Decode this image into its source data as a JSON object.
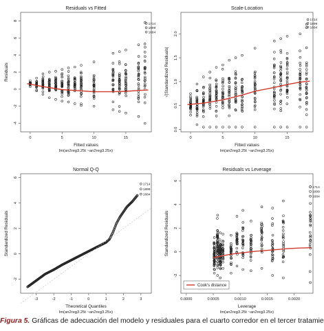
{
  "caption": {
    "label": "Figura 5.",
    "text": "Gráficas de adecuación del modelo y residuales para el cuarto corredor en el tercer tratamiento."
  },
  "colors": {
    "points": "#222222",
    "smooth": "#d0392b",
    "reference": "#bbbbbb",
    "frame": "#666666"
  },
  "chart_data": [
    {
      "type": "scatter",
      "title": "Residuals vs Fitted",
      "xlabel": "Fitted values",
      "model": "lm(an2reg3.25t ~an2reg3.25x)",
      "ylabel": "Residuals",
      "xlim": [
        -1.5,
        19
      ],
      "ylim": [
        -5,
        9
      ],
      "xticks": [
        0,
        5,
        10,
        15
      ],
      "yticks": [
        -4,
        -2,
        0,
        2,
        4,
        6,
        8
      ],
      "fitted_levels": [
        0,
        1,
        2,
        3,
        4,
        5,
        6,
        7,
        8,
        10,
        13,
        14,
        15,
        17,
        18
      ],
      "residual_ranges": [
        [
          0.3,
          1.0
        ],
        [
          -0.2,
          1.3
        ],
        [
          -0.6,
          1.8
        ],
        [
          -1.0,
          2.0
        ],
        [
          -1.2,
          2.1
        ],
        [
          -1.4,
          2.3
        ],
        [
          -1.5,
          2.5
        ],
        [
          -1.7,
          2.6
        ],
        [
          -1.9,
          2.8
        ],
        [
          -2.0,
          3.2
        ],
        [
          -2.4,
          4.2
        ],
        [
          -2.6,
          4.4
        ],
        [
          -2.8,
          4.6
        ],
        [
          -3.2,
          5.2
        ],
        [
          -4.0,
          7.8
        ]
      ],
      "smooth": {
        "x": [
          -0.5,
          2,
          5,
          8,
          10,
          13,
          15,
          17,
          18.5
        ],
        "y": [
          0.65,
          0.3,
          -0.05,
          -0.2,
          -0.3,
          -0.3,
          -0.25,
          -0.15,
          -0.1
        ]
      },
      "labeled_points": [
        {
          "label": "1714",
          "x": 18.2,
          "y": 7.7
        },
        {
          "label": "1899",
          "x": 18.2,
          "y": 7.2
        },
        {
          "label": "1684",
          "x": 18.2,
          "y": 6.7
        }
      ]
    },
    {
      "type": "scatter",
      "title": "Scale-Location",
      "xlabel": "Fitted values",
      "model": "lm(an2reg3.25t ~an2reg3.25x)",
      "ylabel": "√|Standardized Residuals|",
      "xlim": [
        -1.5,
        19
      ],
      "ylim": [
        -0.05,
        2.45
      ],
      "xticks": [
        0,
        5,
        10,
        15
      ],
      "yticks": [
        0.0,
        0.5,
        1.0,
        1.5,
        2.0
      ],
      "fitted_levels": [
        0,
        1,
        2,
        3,
        4,
        5,
        6,
        7,
        8,
        10,
        13,
        14,
        15,
        17,
        18
      ],
      "value_ranges": [
        [
          0.3,
          0.75
        ],
        [
          0.1,
          0.95
        ],
        [
          0.05,
          1.1
        ],
        [
          0.05,
          1.2
        ],
        [
          0.05,
          1.3
        ],
        [
          0.05,
          1.35
        ],
        [
          0.05,
          1.45
        ],
        [
          0.05,
          1.5
        ],
        [
          0.05,
          1.55
        ],
        [
          0.05,
          1.7
        ],
        [
          0.05,
          1.85
        ],
        [
          0.05,
          1.9
        ],
        [
          0.05,
          1.95
        ],
        [
          0.05,
          2.0
        ],
        [
          0.05,
          2.2
        ]
      ],
      "smooth": {
        "x": [
          -0.5,
          2,
          5,
          8,
          10,
          13,
          15,
          17,
          18.5
        ],
        "y": [
          0.52,
          0.55,
          0.62,
          0.72,
          0.8,
          0.88,
          0.94,
          0.99,
          1.01
        ]
      },
      "labeled_points": [
        {
          "label": "1714",
          "x": 18.2,
          "y": 2.3
        },
        {
          "label": "1899",
          "x": 18.2,
          "y": 2.22
        },
        {
          "label": "1684",
          "x": 18.2,
          "y": 2.14
        }
      ]
    },
    {
      "type": "scatter",
      "title": "Normal Q-Q",
      "xlabel": "Theoretical Quantiles",
      "model": "lm(an2reg3.25t ~an2reg3.25x)",
      "ylabel": "Standardized Residuals",
      "xlim": [
        -3.9,
        3.6
      ],
      "ylim": [
        -3.1,
        6.3
      ],
      "xticks": [
        -3,
        -2,
        -1,
        0,
        1,
        2,
        3
      ],
      "yticks": [
        -2,
        0,
        2,
        4,
        6
      ],
      "reference_line": {
        "x": [
          -3.9,
          3.6
        ],
        "y": [
          -3.9,
          3.6
        ]
      },
      "quantile_curve": {
        "x": [
          -3.5,
          -3.0,
          -2.5,
          -2.0,
          -1.5,
          -1.0,
          -0.5,
          0.0,
          0.5,
          1.0,
          1.2,
          1.4,
          1.6,
          1.8,
          2.0,
          2.2,
          2.5,
          2.8
        ],
        "y": [
          -2.6,
          -2.1,
          -1.6,
          -1.25,
          -0.85,
          -0.5,
          -0.15,
          0.2,
          0.55,
          0.9,
          1.15,
          1.7,
          2.4,
          2.9,
          3.3,
          3.7,
          4.1,
          4.6
        ]
      },
      "labeled_points": [
        {
          "label": "1714",
          "x": 3.0,
          "y": 5.5
        },
        {
          "label": "1899",
          "x": 3.0,
          "y": 5.1
        },
        {
          "label": "1684",
          "x": 3.0,
          "y": 4.7
        }
      ]
    },
    {
      "type": "scatter",
      "title": "Residuals vs Leverage",
      "xlabel": "Leverage",
      "model": "lm(an2reg3.25t ~an2reg3.25x)",
      "ylabel": "Standardized Residuals",
      "xlim": [
        -0.0001,
        0.00235
      ],
      "ylim": [
        -3.5,
        6.6
      ],
      "xticks": [
        0.0,
        0.0005,
        0.001,
        0.0015,
        0.002
      ],
      "xtick_labels": [
        "0.0000",
        "0.0005",
        "0.0010",
        "0.0015",
        "0.0020"
      ],
      "yticks": [
        -2,
        0,
        2,
        4,
        6
      ],
      "leverage_levels": [
        0.00052,
        0.00058,
        0.00063,
        0.00068,
        0.00083,
        0.00094,
        0.00105,
        0.0012,
        0.0014,
        0.0016,
        0.0018,
        0.0023
      ],
      "residual_ranges": [
        [
          -1.8,
          1.2
        ],
        [
          -2.0,
          3.1
        ],
        [
          -2.2,
          1.6
        ],
        [
          -1.4,
          1.5
        ],
        [
          -1.8,
          1.4
        ],
        [
          -1.2,
          3.0
        ],
        [
          -1.5,
          3.5
        ],
        [
          -1.6,
          2.6
        ],
        [
          -1.4,
          3.8
        ],
        [
          -2.0,
          3.7
        ],
        [
          -2.2,
          4.3
        ],
        [
          -2.6,
          5.5
        ]
      ],
      "smooth": {
        "x": [
          0.0005,
          0.0007,
          0.0009,
          0.0011,
          0.0013,
          0.0015,
          0.0017,
          0.0019,
          0.0021,
          0.00232
        ],
        "y": [
          -0.5,
          -0.3,
          -0.15,
          -0.05,
          0.05,
          0.12,
          0.2,
          0.28,
          0.32,
          0.35
        ]
      },
      "labeled_points": [
        {
          "label": "1714",
          "x": 0.0023,
          "y": 5.5
        },
        {
          "label": "1899",
          "x": 0.0023,
          "y": 5.1
        },
        {
          "label": "1684",
          "x": 0.0023,
          "y": 4.7
        }
      ],
      "legend": {
        "label": "Cook's distance",
        "placement": "bottom-left"
      }
    }
  ]
}
